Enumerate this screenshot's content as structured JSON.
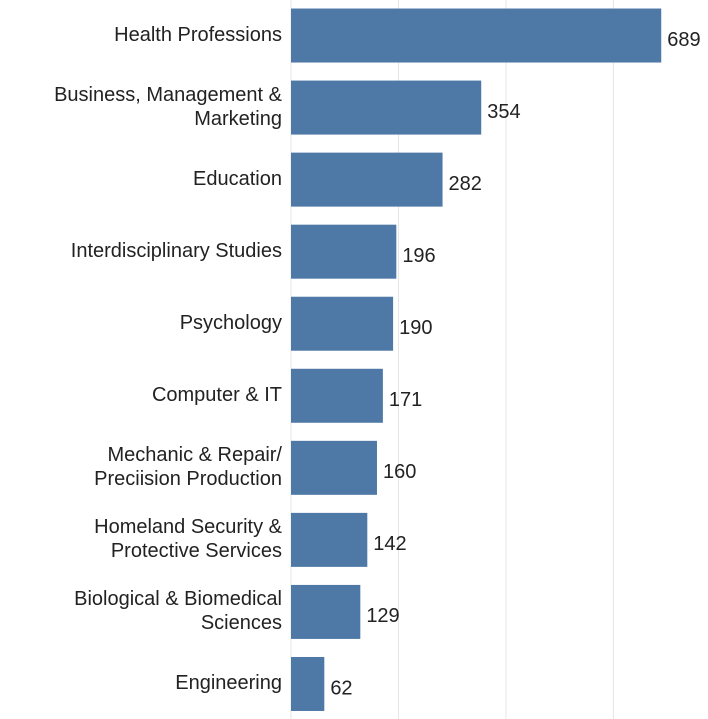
{
  "chart_data": {
    "type": "barh",
    "categories": [
      "Health Professions",
      "Business, Management &\nMarketing",
      "Education",
      "Interdisciplinary Studies",
      "Psychology",
      "Computer & IT",
      "Mechanic & Repair/\nPreciision Production",
      "Homeland Security &\nProtective Services",
      "Biological & Biomedical\nSciences",
      "Engineering"
    ],
    "values": [
      689,
      354,
      282,
      196,
      190,
      171,
      160,
      142,
      129,
      62
    ],
    "color": "#4e79a7",
    "xlim": [
      0,
      776
    ],
    "xticks": [
      0,
      200,
      400,
      600
    ],
    "grid": true
  }
}
